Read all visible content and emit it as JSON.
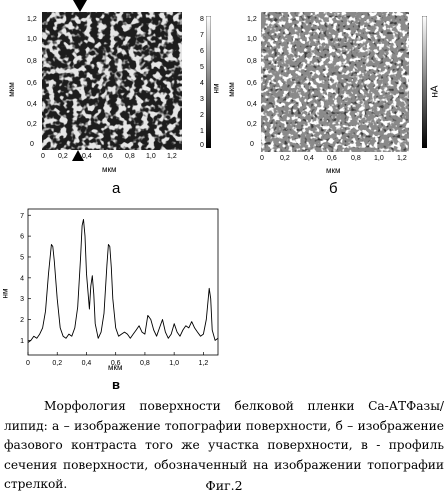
{
  "panel_a": {
    "label": "а",
    "x_axis_label": "мкм",
    "y_axis_label": "мкм",
    "x_ticks": [
      "0",
      "0,2",
      "0,4",
      "0,6",
      "0,8",
      "1,0",
      "1,2"
    ],
    "y_ticks": [
      "1,2",
      "1,0",
      "0,8",
      "0,6",
      "0,4",
      "0,2",
      "0"
    ],
    "colorbar_ticks": [
      "8",
      "7",
      "6",
      "5",
      "4",
      "3",
      "2",
      "1",
      "0"
    ],
    "colorbar_unit": "нм"
  },
  "panel_b": {
    "label": "б",
    "x_axis_label": "мкм",
    "y_axis_label": "мкм",
    "x_ticks": [
      "0",
      "0,2",
      "0,4",
      "0,6",
      "0,8",
      "1,0",
      "1,2"
    ],
    "y_ticks": [
      "1,2",
      "1,0",
      "0,8",
      "0,6",
      "0,4",
      "0,2",
      "0"
    ],
    "colorbar_unit": "нА"
  },
  "panel_c": {
    "label": "в",
    "chart_data": {
      "type": "line",
      "xlabel": "мкм",
      "ylabel": "нм",
      "x_ticks": [
        "0",
        "0,2",
        "0,4",
        "0,6",
        "0,8",
        "1,0",
        "1,2"
      ],
      "y_ticks": [
        "7",
        "6",
        "5",
        "4",
        "3",
        "2",
        "1"
      ],
      "xlim": [
        0,
        1.3
      ],
      "ylim": [
        0.3,
        7.3
      ],
      "series": [
        {
          "x": [
            0.0,
            0.02,
            0.04,
            0.06,
            0.08,
            0.1,
            0.12,
            0.14,
            0.16,
            0.17,
            0.18,
            0.2,
            0.22,
            0.24,
            0.26,
            0.28,
            0.3,
            0.32,
            0.34,
            0.36,
            0.37,
            0.38,
            0.39,
            0.4,
            0.42,
            0.43,
            0.44,
            0.45,
            0.46,
            0.48,
            0.5,
            0.52,
            0.54,
            0.55,
            0.56,
            0.57,
            0.58,
            0.6,
            0.62,
            0.64,
            0.66,
            0.68,
            0.7,
            0.72,
            0.74,
            0.76,
            0.78,
            0.8,
            0.82,
            0.84,
            0.86,
            0.88,
            0.9,
            0.92,
            0.94,
            0.96,
            0.98,
            1.0,
            1.02,
            1.04,
            1.06,
            1.08,
            1.1,
            1.12,
            1.14,
            1.16,
            1.18,
            1.2,
            1.22,
            1.24,
            1.25,
            1.26,
            1.28,
            1.3
          ],
          "y": [
            0.9,
            1.0,
            1.2,
            1.1,
            1.3,
            1.6,
            2.4,
            4.2,
            5.6,
            5.5,
            4.8,
            3.0,
            1.6,
            1.2,
            1.1,
            1.3,
            1.2,
            1.6,
            2.6,
            5.0,
            6.5,
            6.8,
            6.0,
            4.2,
            2.5,
            3.6,
            4.1,
            3.2,
            1.8,
            1.1,
            1.4,
            2.3,
            4.6,
            5.6,
            5.5,
            4.5,
            3.0,
            1.6,
            1.2,
            1.3,
            1.4,
            1.3,
            1.1,
            1.3,
            1.5,
            1.7,
            1.4,
            1.3,
            2.2,
            2.0,
            1.5,
            1.2,
            1.6,
            2.0,
            1.4,
            1.1,
            1.3,
            1.8,
            1.4,
            1.2,
            1.5,
            1.7,
            1.6,
            1.9,
            1.6,
            1.4,
            1.2,
            1.3,
            2.0,
            3.5,
            3.0,
            1.5,
            1.0,
            1.1
          ]
        }
      ]
    }
  },
  "caption": {
    "text": "Морфология поверхности белковой пленки Са-АТФазы/липид: а – изображение топографии поверхности, б – изображение фазового контраста того же участка поверхности, в - профиль сечения поверхности, обозначенный на изображении топографии стрелкой."
  },
  "figure_label": "Фиг.2"
}
